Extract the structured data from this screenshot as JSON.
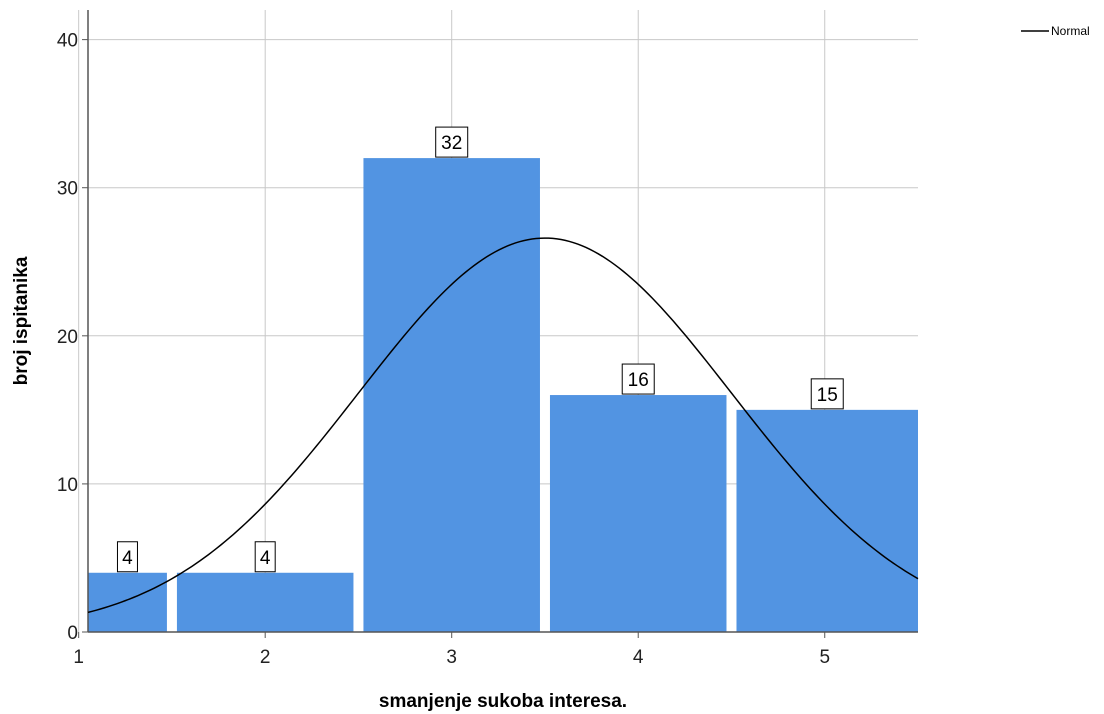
{
  "chart_data": {
    "type": "bar",
    "categories": [
      "1",
      "2",
      "3",
      "4",
      "5"
    ],
    "values": [
      4,
      4,
      32,
      16,
      15
    ],
    "data_labels": [
      "4",
      "4",
      "32",
      "16",
      "15"
    ],
    "xlabel": "smanjenje sukoba interesa.",
    "ylabel": "broj ispitanika",
    "ylim": [
      0,
      42
    ],
    "yticks": [
      "0",
      "10",
      "20",
      "30",
      "40"
    ],
    "xticks": [
      "1",
      "2",
      "3",
      "4",
      "5"
    ],
    "grid": true,
    "legend": {
      "position": "top-right",
      "entries": [
        "Normal"
      ]
    },
    "normal_curve": {
      "mean": 3.5,
      "sd": 1.0,
      "peak": 26.6
    },
    "colors": {
      "bar": "#5294e2",
      "curve": "#000000",
      "grid": "#c8c8c8",
      "axis": "#555555"
    }
  }
}
